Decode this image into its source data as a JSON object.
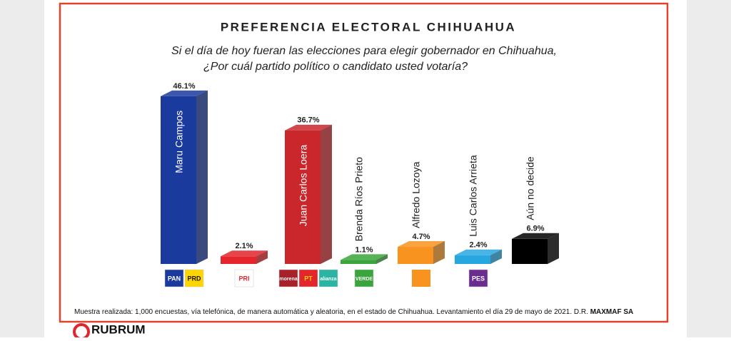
{
  "chart_data": {
    "type": "bar",
    "title": "PREFERENCIA ELECTORAL CHIHUAHUA",
    "subtitle": [
      "Si el día de hoy fueran las elecciones para elegir gobernador en  Chihuahua,",
      "¿Por cuál partido político  o candidato usted votaría?"
    ],
    "categories": [
      "Maru Campos",
      null,
      "Juan Carlos Loera",
      "Brenda Ríos Prieto",
      "Alfredo Lozoya",
      "Luis Carlos Arrieta",
      "Aún no decide"
    ],
    "values": [
      46.1,
      2.1,
      36.7,
      1.1,
      4.7,
      2.4,
      6.9
    ],
    "value_labels": [
      "46.1%",
      "2.1%",
      "36.7%",
      "1.1%",
      "4.7%",
      "2.4%",
      "6.9%"
    ],
    "colors": [
      "#1b3a9e",
      "#e4252c",
      "#c9272b",
      "#3aa53b",
      "#f7931e",
      "#27a7e0",
      "#000000"
    ],
    "logos": [
      [
        "PAN",
        "PRD"
      ],
      [
        "PRI"
      ],
      [
        "morena",
        "PT",
        "alianza"
      ],
      [
        "VERDE"
      ],
      [],
      [
        "PES"
      ],
      []
    ],
    "note": "Muestra realizada: 1,000 encuestas, vía telefónica, de manera automática y aleatoria, en el estado de Chihuahua.  Levantamiento el día 29 de mayo  de 2021. D.R.",
    "note_bold": "MAXMAF SA",
    "brand": "RUBRUM"
  }
}
